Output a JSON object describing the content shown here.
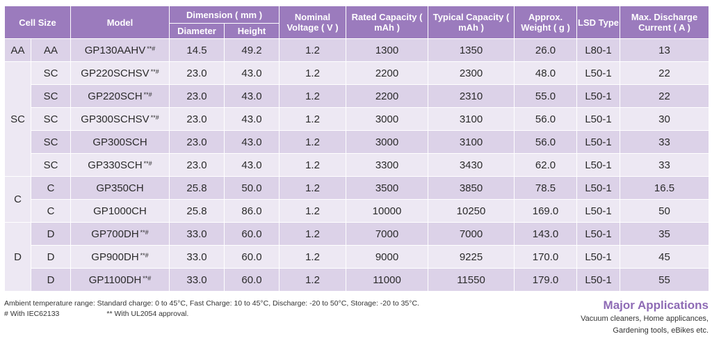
{
  "headers": {
    "cell_size": "Cell Size",
    "model": "Model",
    "dimension": "Dimension ( mm )",
    "diameter": "Diameter",
    "height": "Height",
    "nominal_voltage": "Nominal Voltage ( V )",
    "rated_capacity": "Rated Capacity ( mAh )",
    "typical_capacity": "Typical Capacity ( mAh )",
    "approx_weight": "Approx. Weight ( g )",
    "lsd_type": "LSD Type",
    "max_discharge": "Max. Discharge Current ( A )"
  },
  "groups": [
    {
      "name": "AA",
      "rows": [
        {
          "size": "AA",
          "model": "GP130AAHV",
          "mark": "**#",
          "diameter": "14.5",
          "height": "49.2",
          "voltage": "1.2",
          "rated": "1300",
          "typical": "1350",
          "weight": "26.0",
          "lsd": "L80-1",
          "max": "13"
        }
      ]
    },
    {
      "name": "SC",
      "rows": [
        {
          "size": "SC",
          "model": "GP220SCHSV",
          "mark": "**#",
          "diameter": "23.0",
          "height": "43.0",
          "voltage": "1.2",
          "rated": "2200",
          "typical": "2300",
          "weight": "48.0",
          "lsd": "L50-1",
          "max": "22"
        },
        {
          "size": "SC",
          "model": "GP220SCH",
          "mark": "**#",
          "diameter": "23.0",
          "height": "43.0",
          "voltage": "1.2",
          "rated": "2200",
          "typical": "2310",
          "weight": "55.0",
          "lsd": "L50-1",
          "max": "22"
        },
        {
          "size": "SC",
          "model": "GP300SCHSV",
          "mark": "**#",
          "diameter": "23.0",
          "height": "43.0",
          "voltage": "1.2",
          "rated": "3000",
          "typical": "3100",
          "weight": "56.0",
          "lsd": "L50-1",
          "max": "30"
        },
        {
          "size": "SC",
          "model": "GP300SCH",
          "mark": "",
          "diameter": "23.0",
          "height": "43.0",
          "voltage": "1.2",
          "rated": "3000",
          "typical": "3100",
          "weight": "56.0",
          "lsd": "L50-1",
          "max": "33"
        },
        {
          "size": "SC",
          "model": "GP330SCH",
          "mark": "**#",
          "diameter": "23.0",
          "height": "43.0",
          "voltage": "1.2",
          "rated": "3300",
          "typical": "3430",
          "weight": "62.0",
          "lsd": "L50-1",
          "max": "33"
        }
      ]
    },
    {
      "name": "C",
      "rows": [
        {
          "size": "C",
          "model": "GP350CH",
          "mark": "",
          "diameter": "25.8",
          "height": "50.0",
          "voltage": "1.2",
          "rated": "3500",
          "typical": "3850",
          "weight": "78.5",
          "lsd": "L50-1",
          "max": "16.5"
        },
        {
          "size": "C",
          "model": "GP1000CH",
          "mark": "",
          "diameter": "25.8",
          "height": "86.0",
          "voltage": "1.2",
          "rated": "10000",
          "typical": "10250",
          "weight": "169.0",
          "lsd": "L50-1",
          "max": "50"
        }
      ]
    },
    {
      "name": "D",
      "rows": [
        {
          "size": "D",
          "model": "GP700DH",
          "mark": "**#",
          "diameter": "33.0",
          "height": "60.0",
          "voltage": "1.2",
          "rated": "7000",
          "typical": "7000",
          "weight": "143.0",
          "lsd": "L50-1",
          "max": "35"
        },
        {
          "size": "D",
          "model": "GP900DH",
          "mark": "**#",
          "diameter": "33.0",
          "height": "60.0",
          "voltage": "1.2",
          "rated": "9000",
          "typical": "9225",
          "weight": "170.0",
          "lsd": "L50-1",
          "max": "45"
        },
        {
          "size": "D",
          "model": "GP1100DH",
          "mark": "**#",
          "diameter": "33.0",
          "height": "60.0",
          "voltage": "1.2",
          "rated": "11000",
          "typical": "11550",
          "weight": "179.0",
          "lsd": "L50-1",
          "max": "55"
        }
      ]
    }
  ],
  "notes": {
    "ambient": "Ambient temperature range: Standard charge: 0 to 45°C, Fast Charge: 10 to 45°C, Discharge: -20 to 50°C, Storage: -20 to 35°C.",
    "iec": "# With IEC62133",
    "ul": "** With UL2054 approval."
  },
  "applications": {
    "title": "Major Applications",
    "line1": "Vacuum cleaners, Home applicances,",
    "line2": "Gardening tools, eBikes etc."
  },
  "colors": {
    "header_bg": "#9b7bbd",
    "row_dark": "#dcd2e8",
    "row_light": "#ede8f3",
    "accent": "#8e6bb5"
  }
}
